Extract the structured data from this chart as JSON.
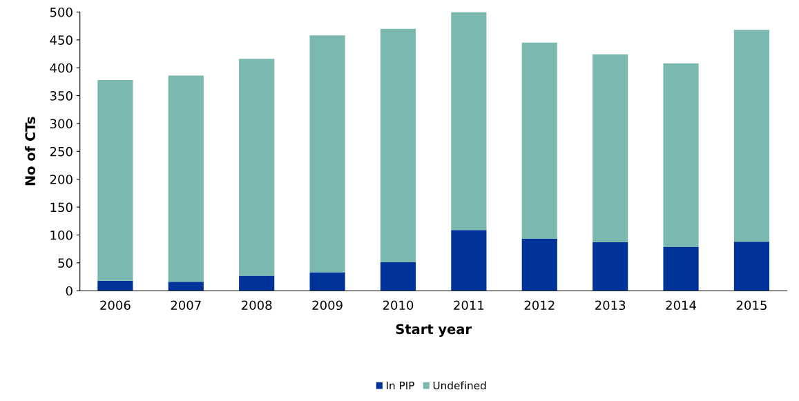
{
  "chart_data": {
    "type": "bar",
    "stacked": true,
    "xlabel": "Start year",
    "ylabel": "No of CTs",
    "categories": [
      "2006",
      "2007",
      "2008",
      "2009",
      "2010",
      "2011",
      "2012",
      "2013",
      "2014",
      "2015"
    ],
    "series": [
      {
        "name": "In PIP",
        "color": "#003399",
        "values": [
          18,
          16,
          27,
          33,
          51,
          109,
          93,
          87,
          79,
          88
        ]
      },
      {
        "name": "Undefined",
        "color": "#7ab8b0",
        "values": [
          360,
          370,
          389,
          425,
          419,
          391,
          352,
          337,
          329,
          380
        ]
      }
    ],
    "ylim": [
      0,
      500
    ],
    "yticks": [
      0,
      50,
      100,
      150,
      200,
      250,
      300,
      350,
      400,
      450,
      500
    ],
    "grid": false,
    "legend": "bottom"
  }
}
